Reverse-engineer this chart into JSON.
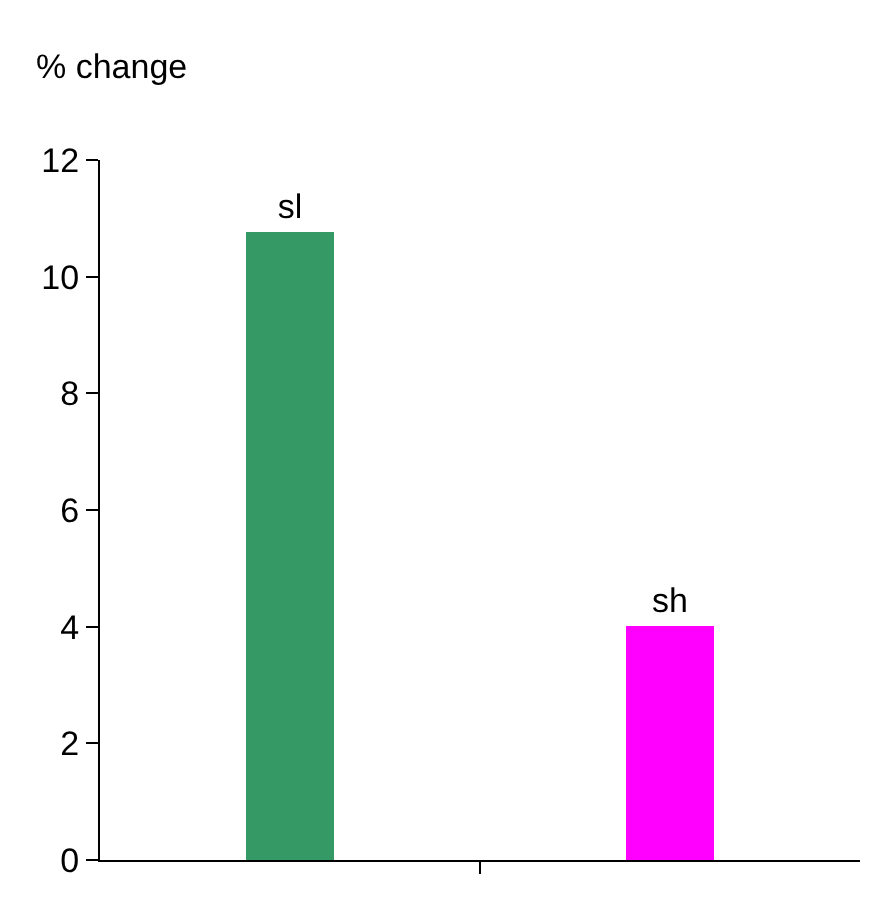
{
  "chart_data": {
    "type": "bar",
    "ylabel": "% change",
    "categories": [
      "sl",
      "sh"
    ],
    "values": [
      10.75,
      4.0
    ],
    "colors": [
      "#359966",
      "#ff00ff"
    ],
    "ylim": [
      0,
      12
    ],
    "yticks": [
      0,
      2,
      4,
      6,
      8,
      10,
      12
    ],
    "tick_labels": "y"
  }
}
